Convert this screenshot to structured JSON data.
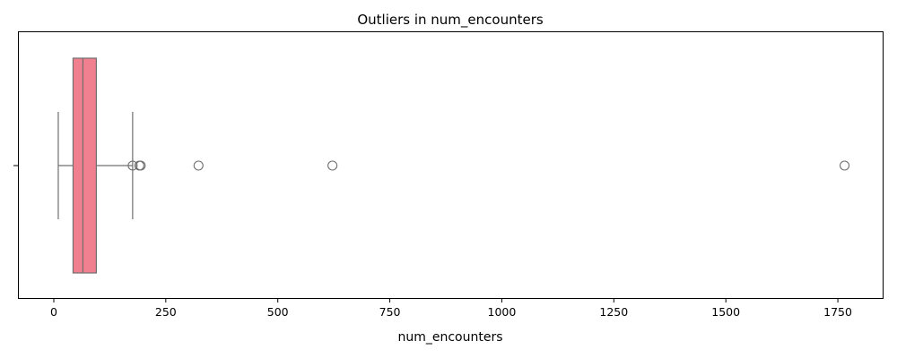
{
  "chart_data": {
    "type": "box",
    "orientation": "horizontal",
    "title": "Outliers in num_encounters",
    "xlabel": "num_encounters",
    "ylabel": "",
    "xlim": [
      -80,
      1850
    ],
    "xticks": [
      0,
      250,
      500,
      750,
      1000,
      1250,
      1500,
      1750
    ],
    "grid": false,
    "box": {
      "whisker_low": 10,
      "q1": 43,
      "median": 65,
      "q3": 95,
      "whisker_high": 176
    },
    "outliers": [
      176,
      191,
      194,
      323,
      622,
      1765
    ],
    "colors": {
      "box_fill": "#f07f8f",
      "line": "#707070",
      "axis": "#000000"
    }
  }
}
